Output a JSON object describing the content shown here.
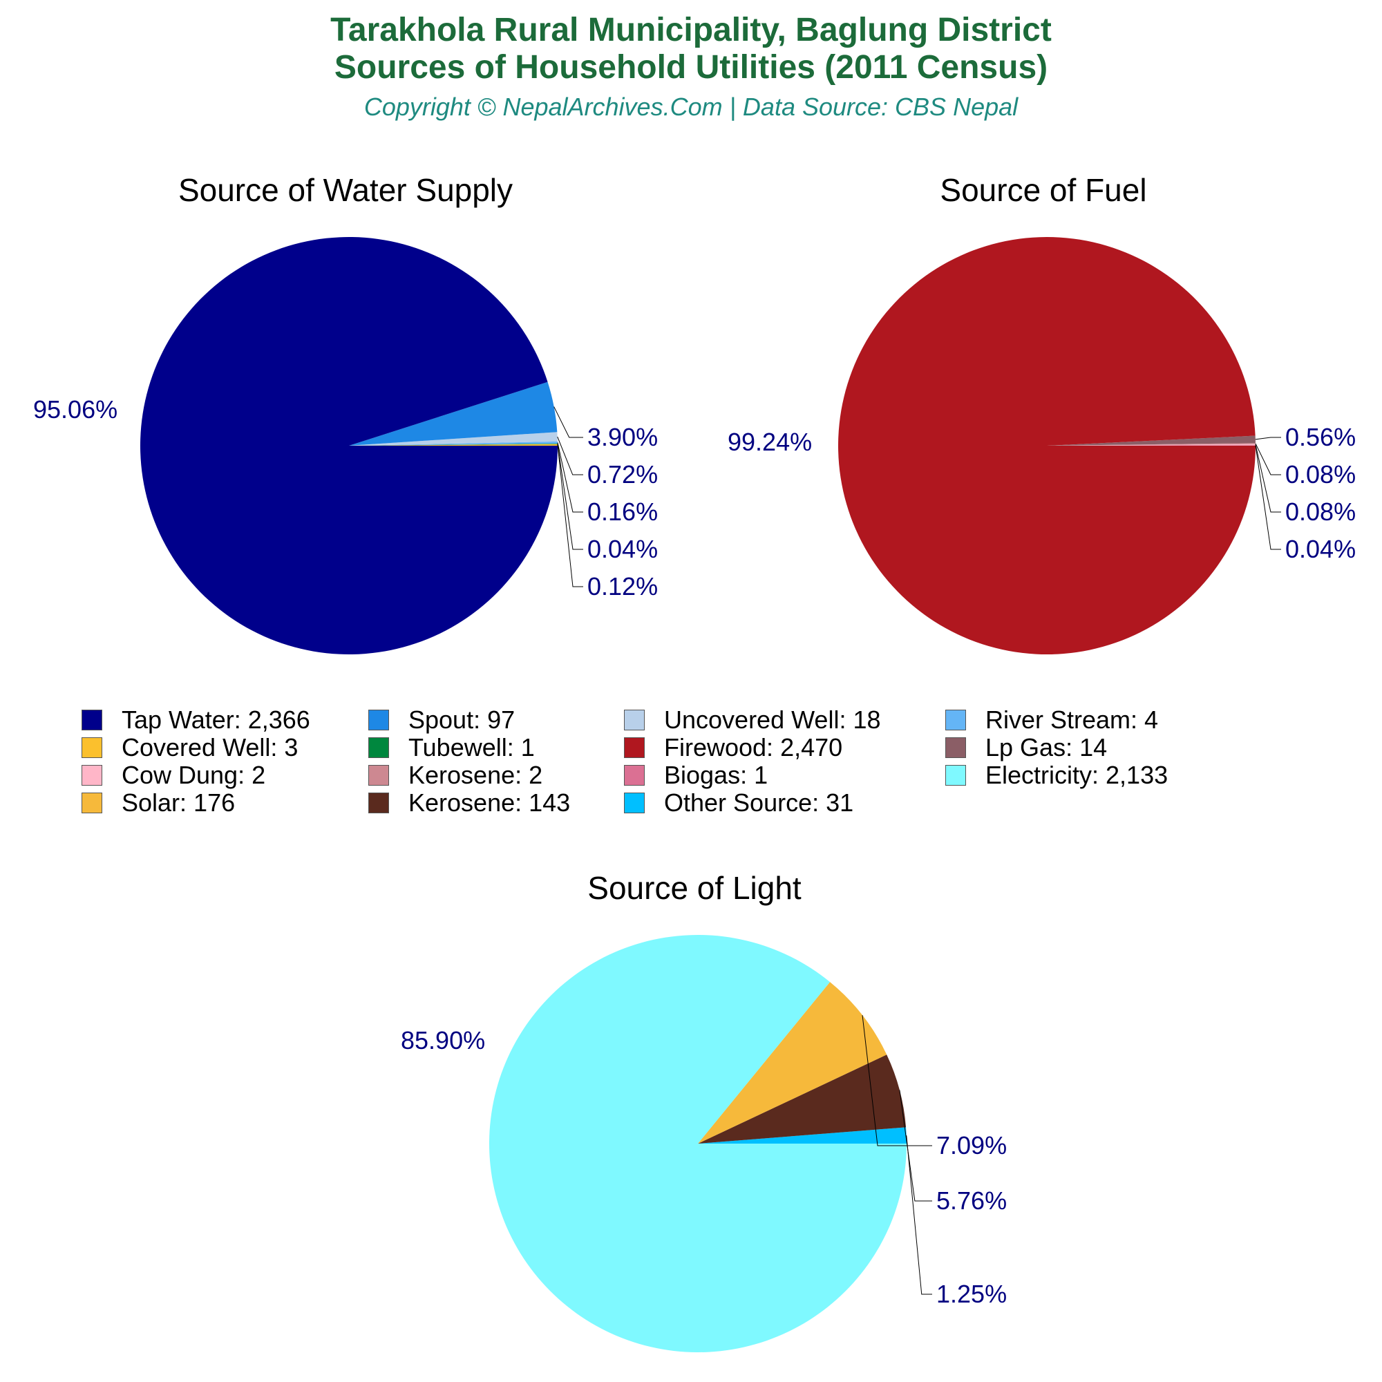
{
  "header": {
    "title_line1": "Tarakhola Rural Municipality, Baglung District",
    "title_line2": "Sources of Household Utilities (2011 Census)",
    "subtitle": "Copyright © NepalArchives.Com | Data Source: CBS Nepal"
  },
  "colors": {
    "title": "#1c6b3a",
    "subtitle": "#1e8a80",
    "percent_label": "#000080"
  },
  "legend": {
    "items": [
      {
        "label": "Tap Water: 2,366",
        "color": "#00008b"
      },
      {
        "label": "Spout: 97",
        "color": "#1e88e5"
      },
      {
        "label": "Uncovered Well: 18",
        "color": "#b8d0ea"
      },
      {
        "label": "River Stream: 4",
        "color": "#64b5f6"
      },
      {
        "label": "Covered Well: 3",
        "color": "#fbc02d"
      },
      {
        "label": "Tubewell: 1",
        "color": "#00873e"
      },
      {
        "label": "Firewood: 2,470",
        "color": "#b0171f"
      },
      {
        "label": "Lp Gas: 14",
        "color": "#8b5e66"
      },
      {
        "label": "Cow Dung: 2",
        "color": "#ffb6c8"
      },
      {
        "label": "Kerosene: 2",
        "color": "#cd8891"
      },
      {
        "label": "Biogas: 1",
        "color": "#db7093"
      },
      {
        "label": "Electricity: 2,133",
        "color": "#7ff9ff"
      },
      {
        "label": "Solar: 176",
        "color": "#f6b93b"
      },
      {
        "label": "Kerosene: 143",
        "color": "#5a2a1e"
      },
      {
        "label": "Other Source: 31",
        "color": "#00bfff"
      }
    ]
  },
  "chart_data": [
    {
      "type": "pie",
      "title": "Source of Water Supply",
      "slices": [
        {
          "name": "Covered Well",
          "value": 3,
          "pct_label": "0.12%",
          "color": "#fbc02d"
        },
        {
          "name": "Tubewell",
          "value": 1,
          "pct_label": "0.04%",
          "color": "#00873e"
        },
        {
          "name": "River Stream",
          "value": 4,
          "pct_label": "0.16%",
          "color": "#64b5f6"
        },
        {
          "name": "Uncovered Well",
          "value": 18,
          "pct_label": "0.72%",
          "color": "#b8d0ea"
        },
        {
          "name": "Spout",
          "value": 97,
          "pct_label": "3.90%",
          "color": "#1e88e5"
        },
        {
          "name": "Tap Water",
          "value": 2366,
          "pct_label": "95.06%",
          "color": "#00008b"
        }
      ]
    },
    {
      "type": "pie",
      "title": "Source of Fuel",
      "slices": [
        {
          "name": "Biogas",
          "value": 1,
          "pct_label": "0.04%",
          "color": "#db7093"
        },
        {
          "name": "Cow Dung",
          "value": 2,
          "pct_label": "0.08%",
          "color": "#ffb6c8"
        },
        {
          "name": "Kerosene",
          "value": 2,
          "pct_label": "0.08%",
          "color": "#cd8891"
        },
        {
          "name": "Lp Gas",
          "value": 14,
          "pct_label": "0.56%",
          "color": "#8b5e66"
        },
        {
          "name": "Firewood",
          "value": 2470,
          "pct_label": "99.24%",
          "color": "#b0171f"
        }
      ]
    },
    {
      "type": "pie",
      "title": "Source of Light",
      "slices": [
        {
          "name": "Other Source",
          "value": 31,
          "pct_label": "1.25%",
          "color": "#00bfff"
        },
        {
          "name": "Kerosene",
          "value": 143,
          "pct_label": "5.76%",
          "color": "#5a2a1e"
        },
        {
          "name": "Solar",
          "value": 176,
          "pct_label": "7.09%",
          "color": "#f6b93b"
        },
        {
          "name": "Electricity",
          "value": 2133,
          "pct_label": "85.90%",
          "color": "#7ff9ff"
        }
      ]
    }
  ]
}
